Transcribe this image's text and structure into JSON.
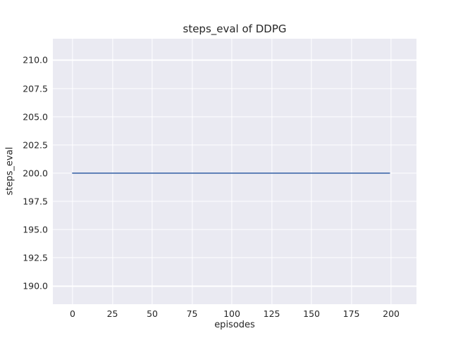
{
  "chart_data": {
    "type": "line",
    "title": "steps_eval of DDPG",
    "xlabel": "episodes",
    "ylabel": "steps_eval",
    "xlim": [
      -12.4,
      215.9
    ],
    "ylim": [
      188.4,
      211.9
    ],
    "grid": true,
    "legend_position": "none",
    "xticks": [
      {
        "v": 0,
        "label": "0"
      },
      {
        "v": 25,
        "label": "25"
      },
      {
        "v": 50,
        "label": "50"
      },
      {
        "v": 75,
        "label": "75"
      },
      {
        "v": 100,
        "label": "100"
      },
      {
        "v": 125,
        "label": "125"
      },
      {
        "v": 150,
        "label": "150"
      },
      {
        "v": 175,
        "label": "175"
      },
      {
        "v": 200,
        "label": "200"
      }
    ],
    "yticks": [
      {
        "v": 190.0,
        "label": "190.0"
      },
      {
        "v": 192.5,
        "label": "192.5"
      },
      {
        "v": 195.0,
        "label": "195.0"
      },
      {
        "v": 197.5,
        "label": "197.5"
      },
      {
        "v": 200.0,
        "label": "200.0"
      },
      {
        "v": 202.5,
        "label": "202.5"
      },
      {
        "v": 205.0,
        "label": "205.0"
      },
      {
        "v": 207.5,
        "label": "207.5"
      },
      {
        "v": 210.0,
        "label": "210.0"
      }
    ],
    "series": [
      {
        "name": "DDPG",
        "color": "#4c72b0",
        "line_width": 1.8,
        "points": [
          [
            0,
            200
          ],
          [
            199,
            200
          ]
        ],
        "description": "constant steps_eval value of 200 across episodes 0 to 199"
      }
    ],
    "colors": {
      "figure_background": "#ffffff",
      "plot_background": "#eaeaf2",
      "gridline": "#ffffff",
      "text": "#262626"
    }
  }
}
